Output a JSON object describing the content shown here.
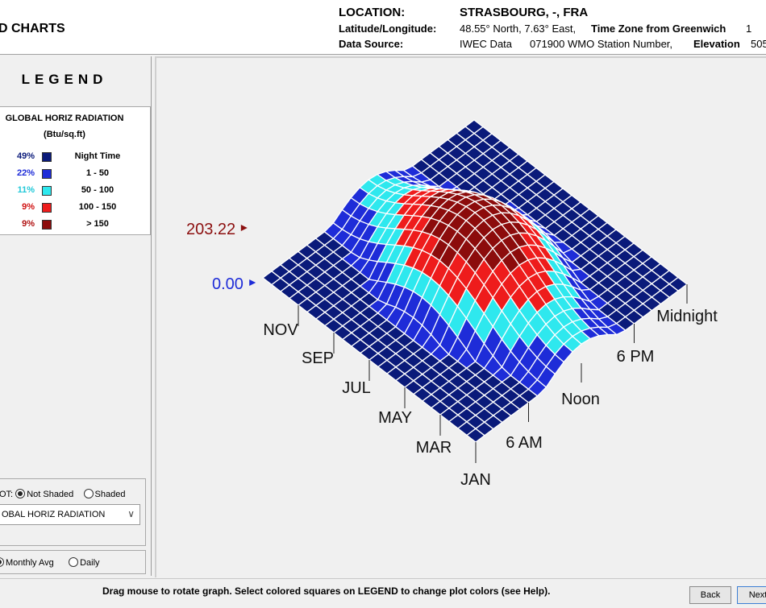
{
  "header": {
    "title_fragment": "D CHARTS",
    "location_label": "LOCATION:",
    "location_value": "STRASBOURG, -, FRA",
    "latlon_label": "Latitude/Longitude:",
    "latlon_value": "48.55° North, 7.63° East,",
    "tz_label": "Time Zone from Greenwich",
    "tz_value": "1",
    "source_label": "Data Source:",
    "source_value": "IWEC Data",
    "wmo_value": "071900 WMO Station Number,",
    "elevation_label": "Elevation",
    "elevation_value": "505"
  },
  "legend": {
    "title": "LEGEND",
    "heading": "GLOBAL HORIZ RADIATION",
    "unit": "(Btu/sq.ft)",
    "rows": [
      {
        "pct": "49%",
        "label": "Night Time",
        "color": "#0a1a7a",
        "pct_color": "#0a1a7a"
      },
      {
        "pct": "22%",
        "label": "1    -    50",
        "color": "#1e2cd8",
        "pct_color": "#1e2cd8"
      },
      {
        "pct": "11%",
        "label": "50    -    100",
        "color": "#2ee8ee",
        "pct_color": "#20c8d8"
      },
      {
        "pct": "9%",
        "label": "100    -    150",
        "color": "#ee1c1c",
        "pct_color": "#d01010"
      },
      {
        "pct": "9%",
        "label": "> 150",
        "color": "#8c0c0c",
        "pct_color": "#b01010"
      }
    ]
  },
  "controls": {
    "plot_prefix": "OT:",
    "not_shaded": "Not Shaded",
    "shaded": "Shaded",
    "variable": "OBAL HORIZ RADIATION",
    "monthly_avg": "Monthly Avg",
    "daily": "Daily"
  },
  "chart_data": {
    "type": "3d-surface",
    "z_max_label": "203.22",
    "z_min_label": "0.00",
    "z_range": [
      0,
      203.22
    ],
    "month_labels": [
      "JAN",
      "MAR",
      "MAY",
      "JUL",
      "SEP",
      "NOV"
    ],
    "hour_labels": [
      "6 AM",
      "Noon",
      "6 PM",
      "Midnight"
    ],
    "color_bands": [
      {
        "range": [
          0,
          0
        ],
        "color": "#0a1a7a"
      },
      {
        "range": [
          1,
          50
        ],
        "color": "#1e2cd8"
      },
      {
        "range": [
          50,
          100
        ],
        "color": "#2ee8ee"
      },
      {
        "range": [
          100,
          150
        ],
        "color": "#ee1c1c"
      },
      {
        "range": [
          150,
          203.22
        ],
        "color": "#8c0c0c"
      }
    ]
  },
  "footer": {
    "hint": "Drag mouse to rotate graph.  Select colored squares on LEGEND to change plot colors (see Help).",
    "back": "Back",
    "next": "Next"
  }
}
